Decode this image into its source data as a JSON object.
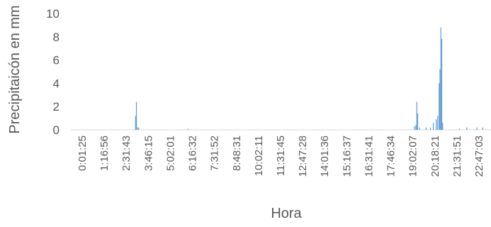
{
  "chart_data": {
    "type": "bar",
    "title": "",
    "xlabel": "Hora",
    "ylabel": "Precipitaicón en mm",
    "ylim": [
      0,
      10
    ],
    "yticks": [
      0,
      2,
      4,
      6,
      8,
      10
    ],
    "grid": false,
    "legend": "none",
    "x_tick_labels": [
      "0:01:25",
      "1:16:56",
      "2:31:43",
      "3:46:15",
      "5:02:01",
      "6:16:32",
      "7:31:52",
      "8:48:31",
      "10:02:11",
      "11:31:45",
      "12:47:28",
      "14:01:36",
      "15:16:37",
      "16:31:41",
      "17:46:34",
      "19:02:07",
      "20:18:21",
      "21:31:51",
      "22:47:03"
    ],
    "bar_color": "#5B9BD5",
    "series": [
      {
        "values": [
          {
            "x": "3:05",
            "y": 1.2
          },
          {
            "x": "3:08",
            "y": 2.4
          },
          {
            "x": "3:12",
            "y": 0.2
          },
          {
            "x": "3:16",
            "y": 0.2
          },
          {
            "x": "6:05",
            "y": 0.1
          },
          {
            "x": "19:05",
            "y": 0.3
          },
          {
            "x": "19:10",
            "y": 0.4
          },
          {
            "x": "19:13",
            "y": 2.4
          },
          {
            "x": "19:16",
            "y": 1.4
          },
          {
            "x": "19:22",
            "y": 0.2
          },
          {
            "x": "19:45",
            "y": 0.2
          },
          {
            "x": "20:00",
            "y": 0.2
          },
          {
            "x": "20:10",
            "y": 0.6
          },
          {
            "x": "20:20",
            "y": 0.9
          },
          {
            "x": "20:25",
            "y": 1.2
          },
          {
            "x": "20:30",
            "y": 4.0
          },
          {
            "x": "20:33",
            "y": 5.2
          },
          {
            "x": "20:36",
            "y": 8.8
          },
          {
            "x": "20:39",
            "y": 7.8
          },
          {
            "x": "20:42",
            "y": 0.6
          },
          {
            "x": "21:40",
            "y": 0.1
          },
          {
            "x": "22:05",
            "y": 0.2
          },
          {
            "x": "22:40",
            "y": 0.2
          },
          {
            "x": "23:00",
            "y": 0.2
          }
        ]
      }
    ]
  }
}
